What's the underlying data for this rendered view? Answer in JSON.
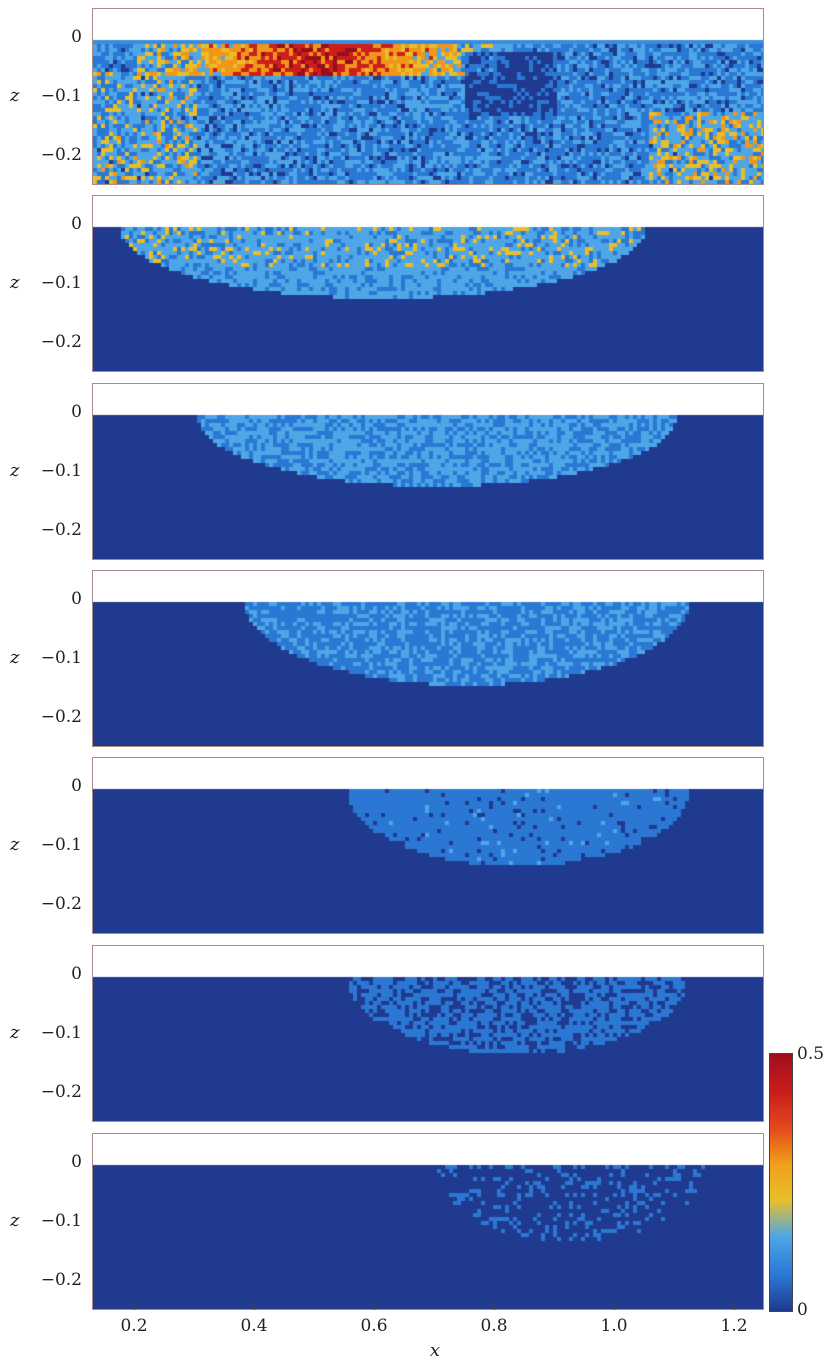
{
  "chart_data": {
    "type": "heatmap",
    "panels": [
      {
        "panel": 1,
        "surface_profile": "irregular",
        "hotspot": {
          "x_range": [
            0.3,
            0.7
          ],
          "max_level": 0.5
        }
      },
      {
        "panel": 2,
        "plume_x_range": [
          0.17,
          1.05
        ],
        "max_depth": 0.12
      },
      {
        "panel": 3,
        "plume_x_range": [
          0.3,
          1.1
        ],
        "max_depth": 0.12
      },
      {
        "panel": 4,
        "plume_x_range": [
          0.38,
          1.12
        ],
        "max_depth": 0.14
      },
      {
        "panel": 5,
        "plume_x_range": [
          0.55,
          1.12
        ],
        "max_depth": 0.13
      },
      {
        "panel": 6,
        "plume_x_range": [
          0.55,
          1.12
        ],
        "max_depth": 0.13
      },
      {
        "panel": 7,
        "plume_x_range": [
          0.7,
          1.15
        ],
        "max_depth": 0.13
      }
    ],
    "xlabel": "x",
    "ylabel": "z",
    "x_ticks": [
      "0.2",
      "0.4",
      "0.6",
      "0.8",
      "1.0",
      "1.2"
    ],
    "y_ticks": [
      "0",
      "−0.1",
      "−0.2"
    ],
    "xlim": [
      0.13,
      1.25
    ],
    "ylim": [
      -0.25,
      0.05
    ],
    "colorbar": {
      "min": 0,
      "max": 0.5,
      "min_label": "0",
      "max_label": "0.5",
      "colors": [
        "#1f3a8f",
        "#2b78d4",
        "#4ea6e6",
        "#e8c02a",
        "#f0a019",
        "#e34a1c",
        "#c81b1b",
        "#9e0f1c"
      ]
    }
  }
}
